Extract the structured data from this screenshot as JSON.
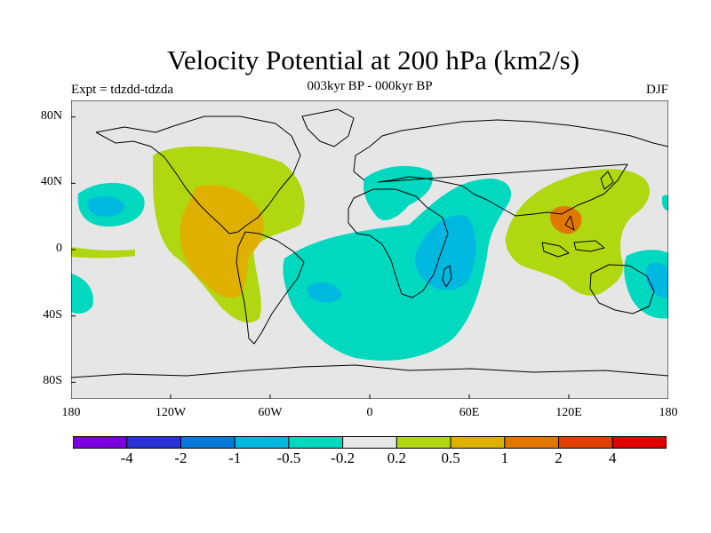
{
  "title": "Velocity Potential at 200 hPa (km2/s)",
  "subtitle": "003kyr BP - 000kyr BP",
  "expt_label": "Expt = tdzdd-tdzda",
  "season": "DJF",
  "lat_ticks": [
    {
      "label": "80N",
      "lat": 80
    },
    {
      "label": "40N",
      "lat": 40
    },
    {
      "label": "0",
      "lat": 0
    },
    {
      "label": "40S",
      "lat": -40
    },
    {
      "label": "80S",
      "lat": -80
    }
  ],
  "lon_ticks": [
    {
      "label": "180",
      "lon": -180
    },
    {
      "label": "120W",
      "lon": -120
    },
    {
      "label": "60W",
      "lon": -60
    },
    {
      "label": "0",
      "lon": 0
    },
    {
      "label": "60E",
      "lon": 60
    },
    {
      "label": "120E",
      "lon": 120
    },
    {
      "label": "180",
      "lon": 180
    }
  ],
  "colorbar": {
    "colors": [
      "#7b00e0",
      "#2a32d6",
      "#0a78d8",
      "#00b8e0",
      "#00d8c0",
      "#e6e6e6",
      "#b0d810",
      "#e0b000",
      "#e07800",
      "#e04000",
      "#e00000"
    ],
    "labels": [
      "-4",
      "-2",
      "-1",
      "-0.5",
      "-0.2",
      "0.2",
      "0.5",
      "1",
      "2",
      "4"
    ]
  },
  "map_colors": {
    "background": "#e6e6e6",
    "neg_weak": "#00d8c0",
    "neg_mid": "#00b8e0",
    "pos_weak": "#b0d810",
    "pos_mid": "#e0b000",
    "pos_strong": "#e07800",
    "coast": "#000000"
  }
}
